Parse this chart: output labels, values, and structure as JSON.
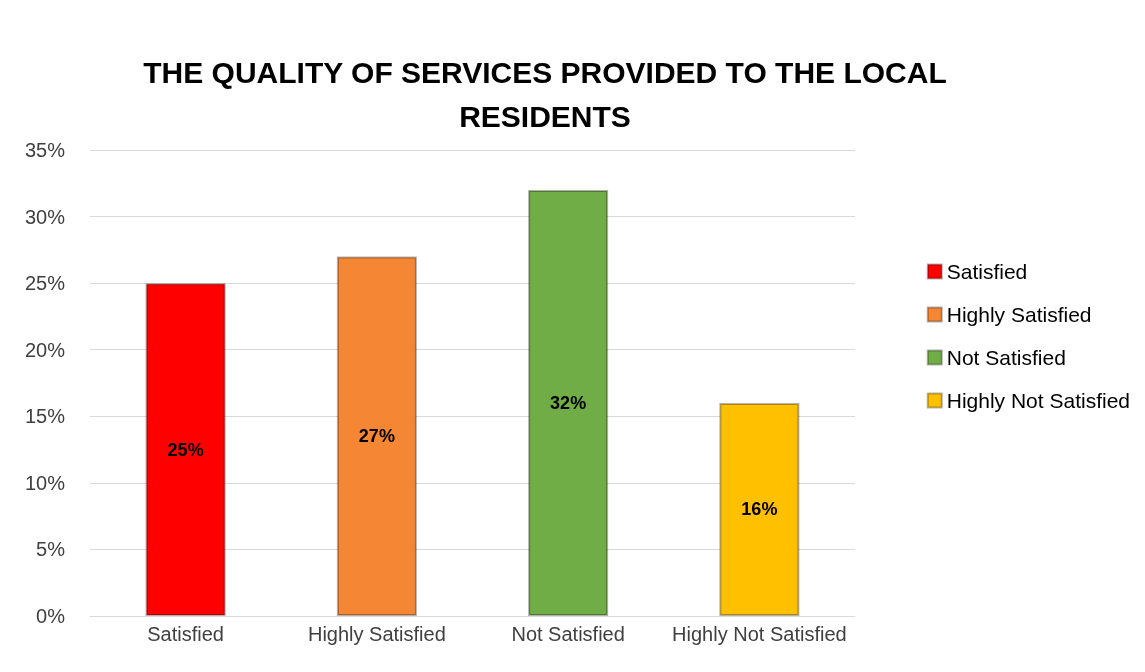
{
  "chart_data": {
    "type": "bar",
    "title": "THE QUALITY OF SERVICES PROVIDED TO THE LOCAL\nRESIDENTS",
    "categories": [
      "Satisfied",
      "Highly Satisfied",
      "Not Satisfied",
      "Highly Not Satisfied"
    ],
    "series": [
      {
        "name": "Satisfied",
        "color": "#ff0000",
        "values": [
          25,
          null,
          null,
          null
        ],
        "value_labels": [
          "25%",
          null,
          null,
          null
        ]
      },
      {
        "name": "Highly Satisfied",
        "color": "#f58634",
        "values": [
          null,
          27,
          null,
          null
        ],
        "value_labels": [
          null,
          "27%",
          null,
          null
        ]
      },
      {
        "name": "Not Satisfied",
        "color": "#70ad47",
        "values": [
          null,
          null,
          32,
          null
        ],
        "value_labels": [
          null,
          null,
          "32%",
          null
        ]
      },
      {
        "name": "Highly Not Satisfied",
        "color": "#ffc000",
        "values": [
          null,
          null,
          null,
          16
        ],
        "value_labels": [
          null,
          null,
          null,
          "16%"
        ]
      }
    ],
    "ylim": [
      0,
      35
    ],
    "yticks": [
      {
        "value": 0,
        "label": "0%"
      },
      {
        "value": 5,
        "label": "5%"
      },
      {
        "value": 10,
        "label": "10%"
      },
      {
        "value": 15,
        "label": "15%"
      },
      {
        "value": 20,
        "label": "20%"
      },
      {
        "value": 25,
        "label": "25%"
      },
      {
        "value": 30,
        "label": "30%"
      },
      {
        "value": 35,
        "label": "35%"
      }
    ],
    "grid": "y",
    "legend": "right"
  }
}
